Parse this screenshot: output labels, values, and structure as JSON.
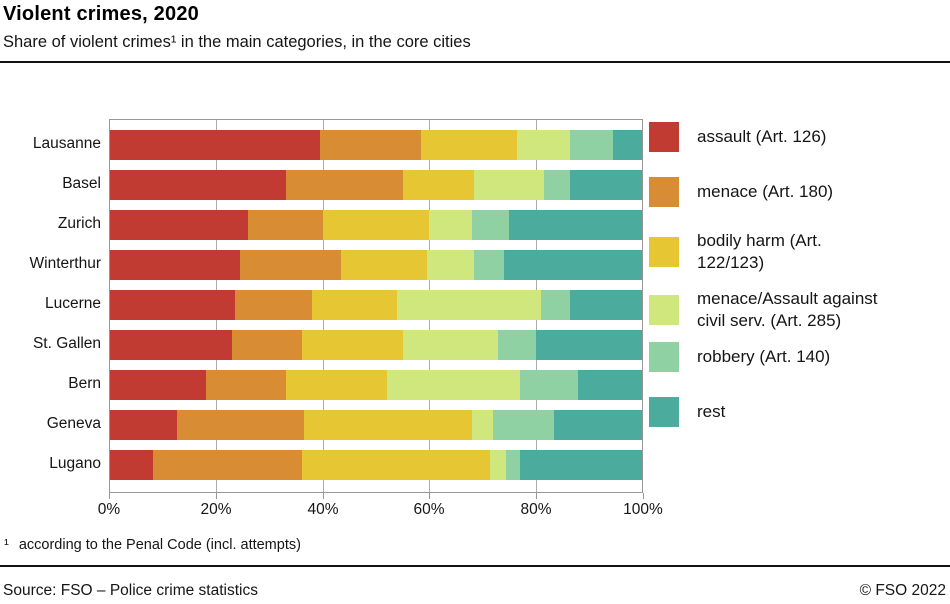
{
  "header": {
    "title": "Violent crimes, 2020",
    "subtitle": "Share of violent crimes¹ in the main categories, in the core cities"
  },
  "chart_data": {
    "type": "bar",
    "variant": "horizontal_stacked",
    "title": "Violent crimes, 2020",
    "subtitle": "Share of violent crimes¹ in the main categories, in the core cities",
    "categories": [
      "Lausanne",
      "Basel",
      "Zurich",
      "Winterthur",
      "Lucerne",
      "St. Gallen",
      "Bern",
      "Geneva",
      "Lugano"
    ],
    "series": [
      {
        "name": "assault (Art. 126)",
        "color": "#c23b33",
        "values": [
          39.5,
          33,
          26,
          24.5,
          23.5,
          23,
          18,
          12.5,
          8
        ]
      },
      {
        "name": "menace (Art. 180)",
        "color": "#d88d34",
        "values": [
          19,
          22,
          14,
          19,
          14.5,
          13,
          15,
          24,
          28
        ]
      },
      {
        "name": "bodily harm (Art. 122/123)",
        "color": "#e7c634",
        "values": [
          18,
          13.5,
          20,
          16,
          16,
          19,
          19,
          31.5,
          35.5
        ]
      },
      {
        "name": "menace/Assault against civil serv. (Art. 285)",
        "color": "#cfe77d",
        "values": [
          10,
          13,
          8,
          9,
          27,
          18,
          25,
          4,
          3
        ]
      },
      {
        "name": "robbery (Art. 140)",
        "color": "#90d1a3",
        "values": [
          8,
          5,
          7,
          5.5,
          5.5,
          7,
          11,
          11.5,
          2.5
        ]
      },
      {
        "name": "rest",
        "color": "#4bab9c",
        "values": [
          5.5,
          13.5,
          25,
          26,
          13.5,
          20,
          12,
          16.5,
          23
        ]
      }
    ],
    "x_ticks": [
      "0%",
      "20%",
      "40%",
      "60%",
      "80%",
      "100%"
    ],
    "x_tick_values": [
      0,
      20,
      40,
      60,
      80,
      100
    ],
    "xlim": [
      0,
      100
    ],
    "grid": true,
    "legend_position": "right",
    "unit": "percent"
  },
  "legend": {
    "items": [
      {
        "label": "assault (Art. 126)"
      },
      {
        "label": "menace (Art. 180)"
      },
      {
        "label": "bodily harm (Art.\n122/123)"
      },
      {
        "label": "menace/Assault against\ncivil serv. (Art. 285)"
      },
      {
        "label": "robbery (Art. 140)"
      },
      {
        "label": "rest"
      }
    ]
  },
  "footnote": {
    "marker": "¹",
    "text": "according to the Penal Code (incl. attempts)"
  },
  "footer": {
    "source": "Source: FSO – Police crime statistics",
    "copyright": "© FSO 2022"
  }
}
